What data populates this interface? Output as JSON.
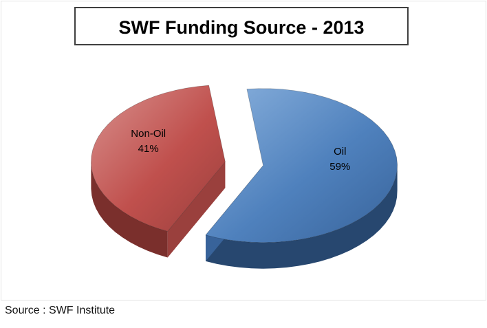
{
  "chart_data": {
    "type": "pie",
    "title": "SWF Funding Source - 2013",
    "categories": [
      "Oil",
      "Non-Oil"
    ],
    "values": [
      59,
      41
    ],
    "unit": "%",
    "colors": [
      "#4f81bd",
      "#c0504d"
    ],
    "mid_colors": [
      "#38639a",
      "#9a403d"
    ],
    "dark_colors": [
      "#27476f",
      "#7a2f2c"
    ],
    "light_colors": [
      "#8ab1dd",
      "#d8918e"
    ],
    "label_color": "#000000",
    "style": "3d-exploded-pie",
    "start_angle": 97,
    "legend": "none",
    "labels_inside": true
  },
  "footer": {
    "source": "Source : SWF Institute"
  }
}
